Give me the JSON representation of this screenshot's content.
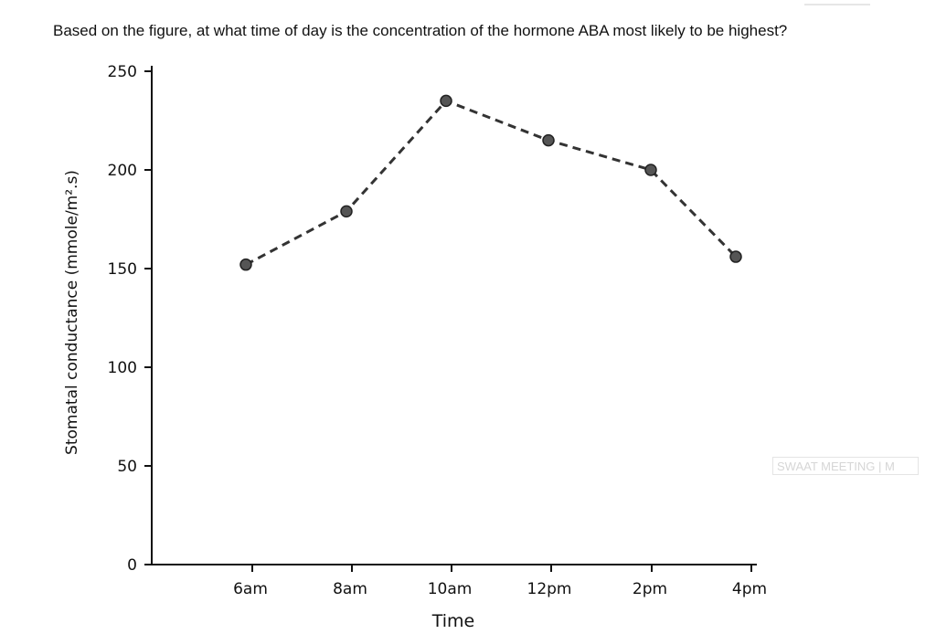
{
  "question": "Based on the figure, at what time of day is the concentration of the hormone ABA most likely to be highest?",
  "watermark": "SWAAT MEETING | M",
  "chart_data": {
    "type": "line",
    "title": "",
    "xlabel": "Time",
    "ylabel": "Stomatal conductance (mmole/m².s)",
    "categories": [
      "6am",
      "8am",
      "10am",
      "12pm",
      "2pm",
      "4pm"
    ],
    "series": [
      {
        "values": [
          152,
          179,
          235,
          215,
          200,
          156
        ]
      }
    ],
    "ylim": [
      0,
      250
    ],
    "yticks": [
      0,
      50,
      100,
      150,
      200,
      250
    ],
    "grid": false,
    "line_style": "dashed",
    "marker": "circle",
    "line_color": "#333333",
    "marker_color": "#555555"
  }
}
